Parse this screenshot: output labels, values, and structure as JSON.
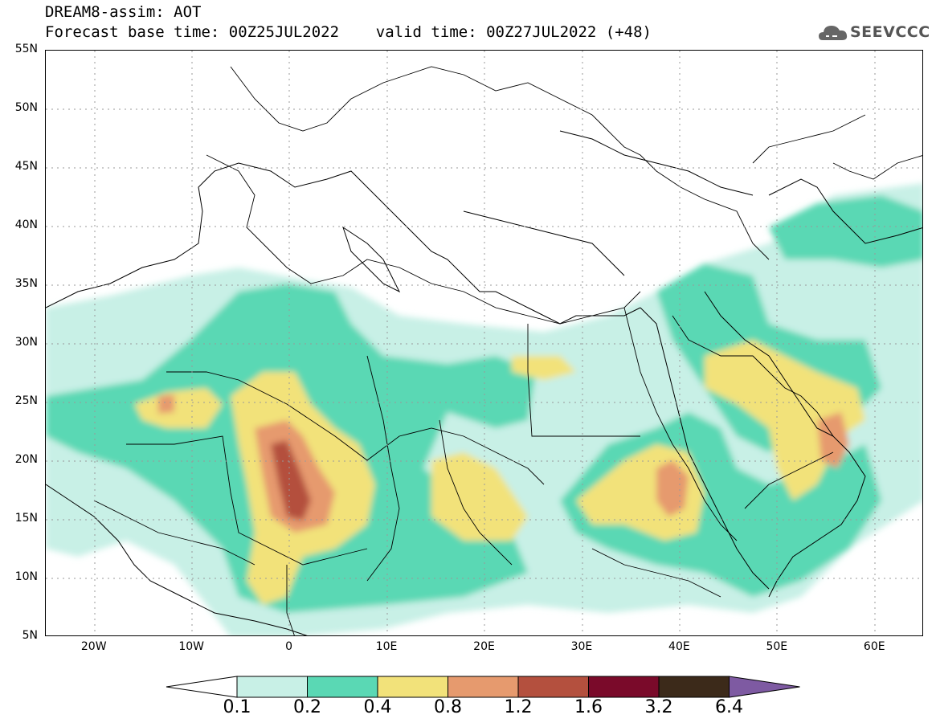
{
  "header": {
    "title": "DREAM8-assim: AOT",
    "subtitle": "Forecast base time: 00Z25JUL2022    valid time: 00Z27JUL2022 (+48)",
    "logo_text": "SEEVCCC"
  },
  "map": {
    "variable": "AOT",
    "lat_range": [
      5,
      55
    ],
    "lon_range": [
      -25,
      65
    ],
    "lat_ticks": [
      "55N",
      "50N",
      "45N",
      "40N",
      "35N",
      "30N",
      "25N",
      "20N",
      "15N",
      "10N",
      "5N"
    ],
    "lon_ticks": [
      "20W",
      "10W",
      "0",
      "10E",
      "20E",
      "30E",
      "40E",
      "50E",
      "60E"
    ]
  },
  "colorbar": {
    "levels": [
      "0.1",
      "0.2",
      "0.4",
      "0.8",
      "1.2",
      "1.6",
      "3.2",
      "6.4"
    ],
    "colors": [
      "#ffffff",
      "#c8f0e6",
      "#5ad8b4",
      "#f2e27a",
      "#e69a6e",
      "#b4503e",
      "#7a0a2a",
      "#3c2a1a",
      "#7e5aa2"
    ]
  }
}
